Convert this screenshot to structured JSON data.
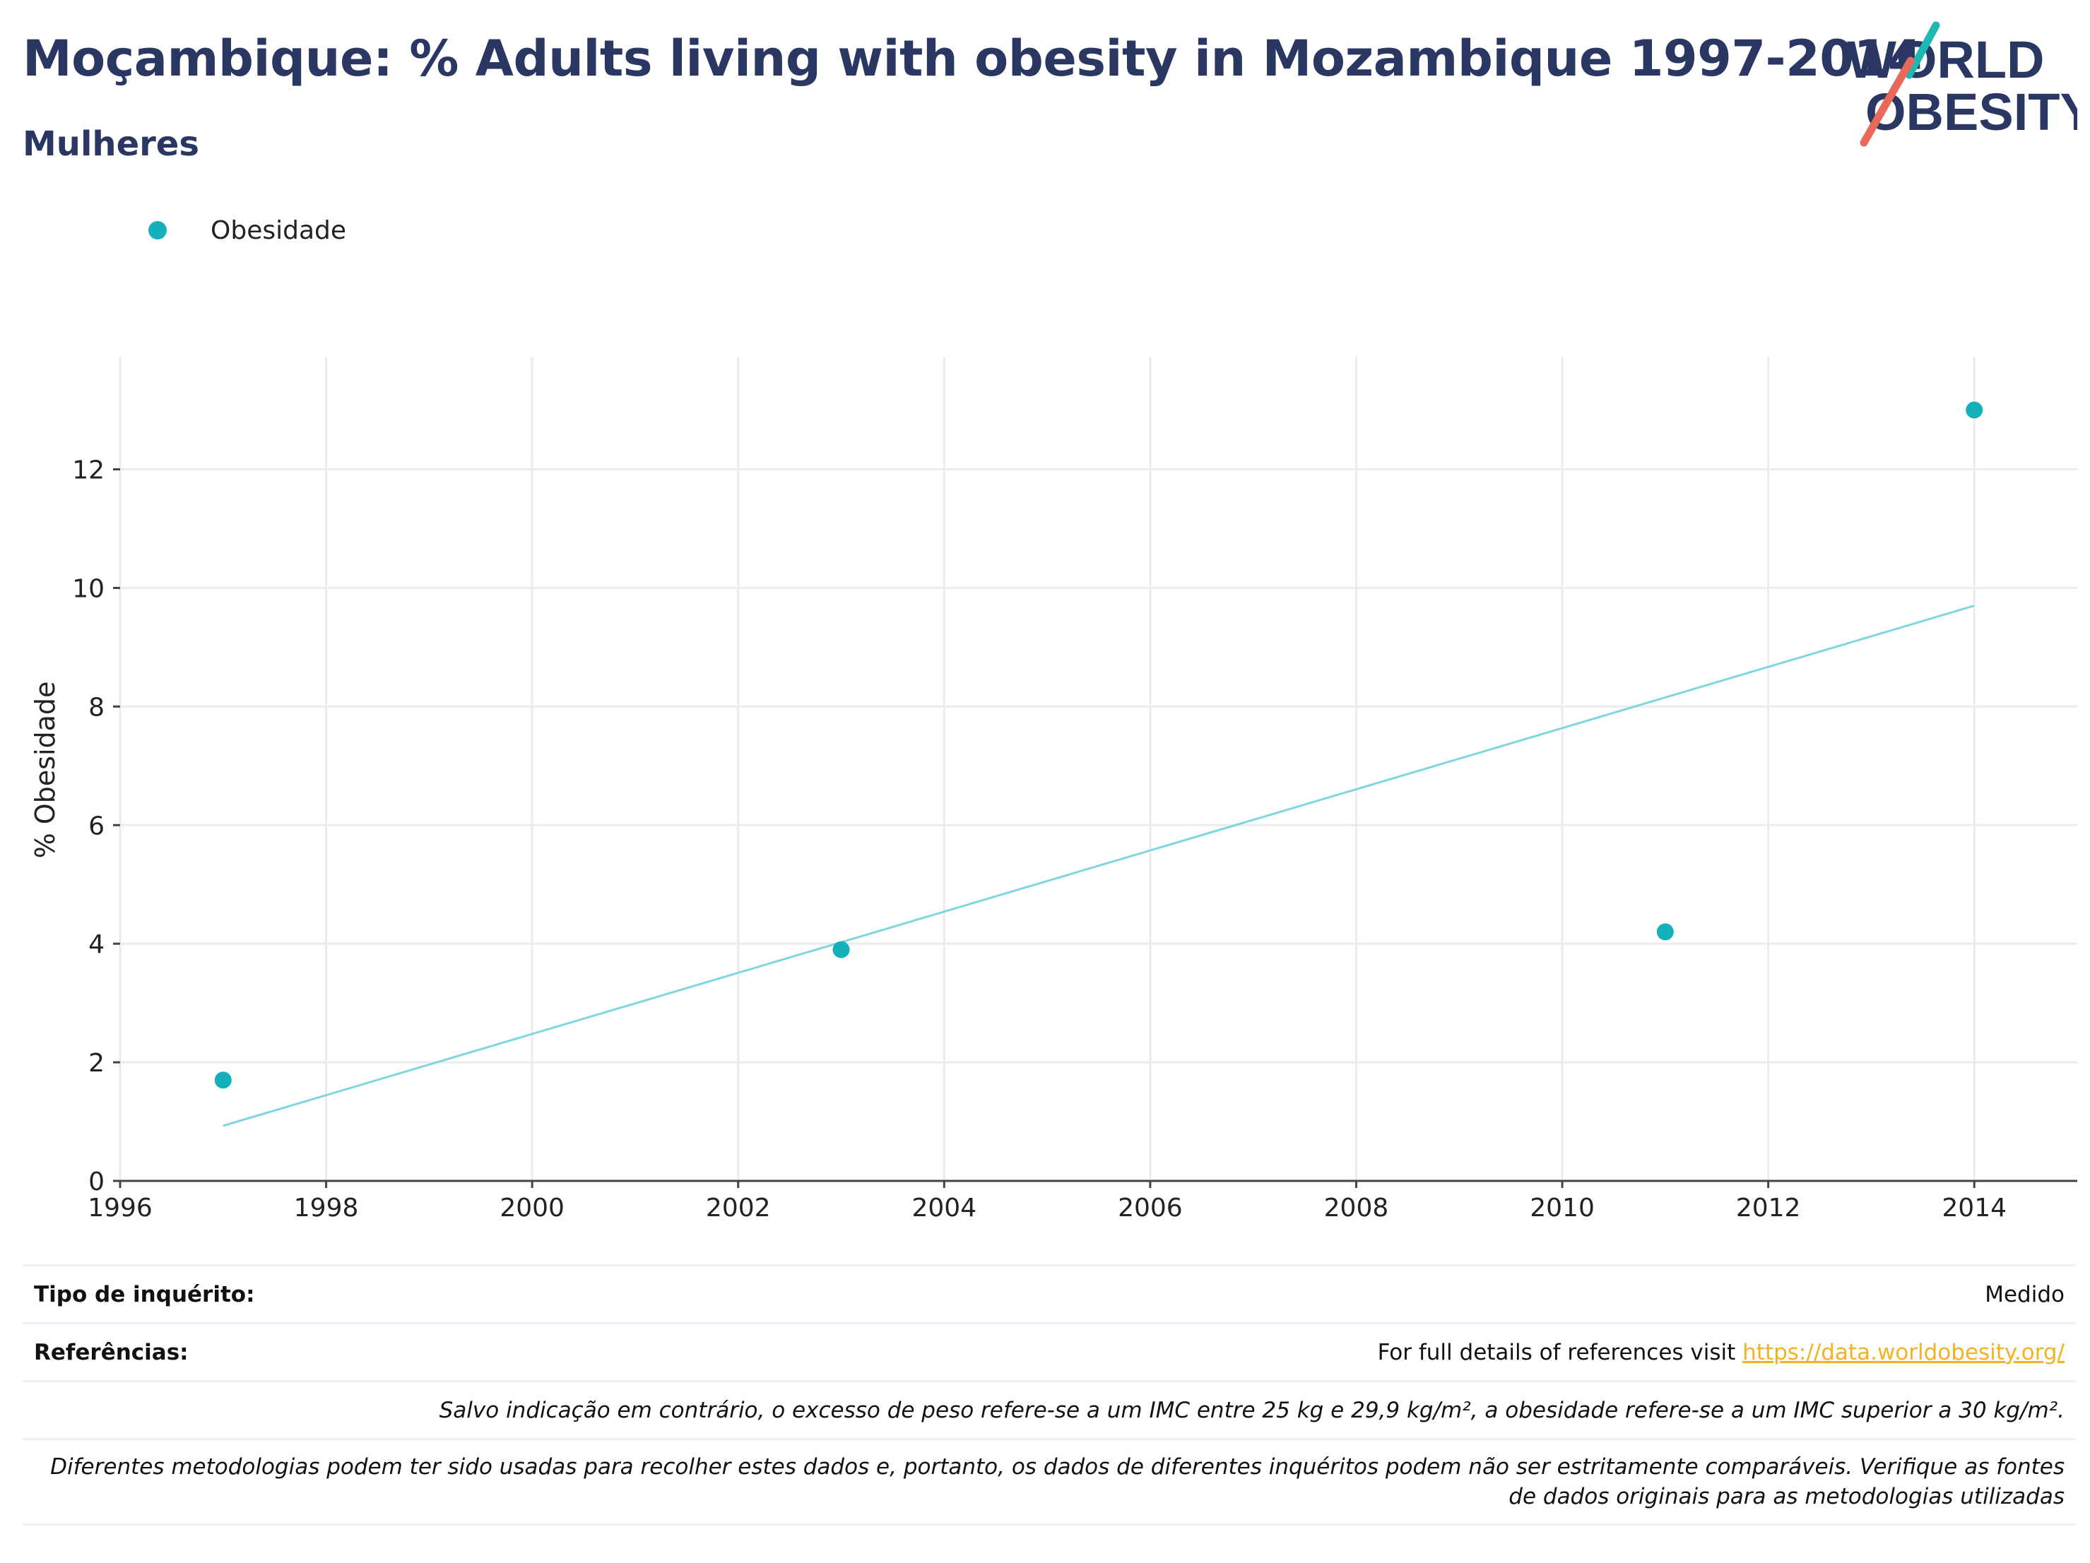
{
  "header": {
    "title": "Moçambique: % Adults living with obesity in Mozambique 1997-2014",
    "subtitle": "Mulheres"
  },
  "logo": {
    "line1": "WORLD",
    "line2": "OBESITY",
    "colors": {
      "text": "#2a3763",
      "teal": "#1fb7b2",
      "coral": "#e8695a"
    }
  },
  "legend": {
    "items": [
      {
        "label": "Obesidade",
        "color": "#14b1bb"
      }
    ]
  },
  "chart_data": {
    "type": "scatter",
    "title": "Moçambique: % Adults living with obesity in Mozambique 1997-2014",
    "subtitle": "Mulheres",
    "xlabel": "",
    "ylabel": "% Obesidade",
    "xlim": [
      1996,
      2015
    ],
    "ylim": [
      0,
      13.9
    ],
    "x_ticks": [
      1996,
      1998,
      2000,
      2002,
      2004,
      2006,
      2008,
      2010,
      2012,
      2014
    ],
    "y_ticks": [
      0,
      2,
      4,
      6,
      8,
      10,
      12
    ],
    "grid": true,
    "series": [
      {
        "name": "Obesidade",
        "color": "#14b1bb",
        "x": [
          1997,
          2003,
          2011,
          2014
        ],
        "y": [
          1.7,
          3.9,
          4.2,
          13.0
        ]
      }
    ],
    "trendline": {
      "color": "#7fd6dc",
      "x": [
        1997,
        2014
      ],
      "y": [
        0.93,
        9.7
      ]
    }
  },
  "footer": {
    "survey_type_label": "Tipo de inquérito:",
    "survey_type_value": "Medido",
    "references_label": "Referências:",
    "references_text": "For full details of references visit ",
    "references_link": "https://data.worldobesity.org/",
    "note_bmi": "Salvo indicação em contrário, o excesso de peso refere-se a um IMC entre 25 kg e 29,9 kg/m², a obesidade refere-se a um IMC superior a 30 kg/m².",
    "note_methods_1": "Diferentes metodologias podem ter sido usadas para recolher estes dados e, portanto, os dados de diferentes inquéritos podem não ser estritamente comparáveis. Verifique as fontes",
    "note_methods_2": "de dados originais para as metodologias utilizadas"
  }
}
